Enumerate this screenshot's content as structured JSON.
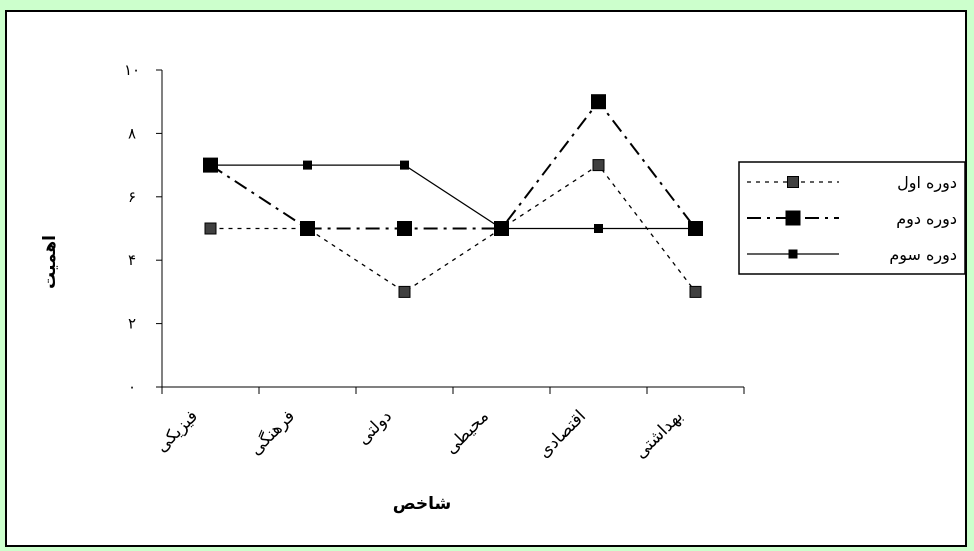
{
  "chart_data": {
    "type": "line",
    "xlabel": "شاخص",
    "ylabel": "اهمیت",
    "categories": [
      "فیزیکی",
      "فرهنگی",
      "دولتی",
      "محیطی",
      "اقتصادی",
      "بهداشتی"
    ],
    "y_ticks": [
      "۰",
      "۲",
      "۴",
      "۶",
      "۸",
      "۱۰"
    ],
    "ylim": [
      0,
      10
    ],
    "grid": false,
    "legend_position": "right",
    "series": [
      {
        "name": "دوره اول",
        "values": [
          5,
          5,
          3,
          5,
          7,
          3
        ],
        "dash": "dotted",
        "color": "#000000",
        "marker": "square",
        "marker_size": "medium",
        "marker_fill": "#404040"
      },
      {
        "name": "دوره دوم",
        "values": [
          7,
          5,
          5,
          5,
          9,
          5
        ],
        "dash": "dash-dot",
        "color": "#000000",
        "marker": "square",
        "marker_size": "large",
        "marker_fill": "#000000"
      },
      {
        "name": "دوره سوم",
        "values": [
          7,
          7,
          7,
          5,
          5,
          5
        ],
        "dash": "solid",
        "color": "#000000",
        "marker": "square",
        "marker_size": "small",
        "marker_fill": "#000000"
      }
    ]
  },
  "colors": {
    "background": "#ccffcc",
    "plot_area": "#ffffff",
    "line": "#000000"
  }
}
